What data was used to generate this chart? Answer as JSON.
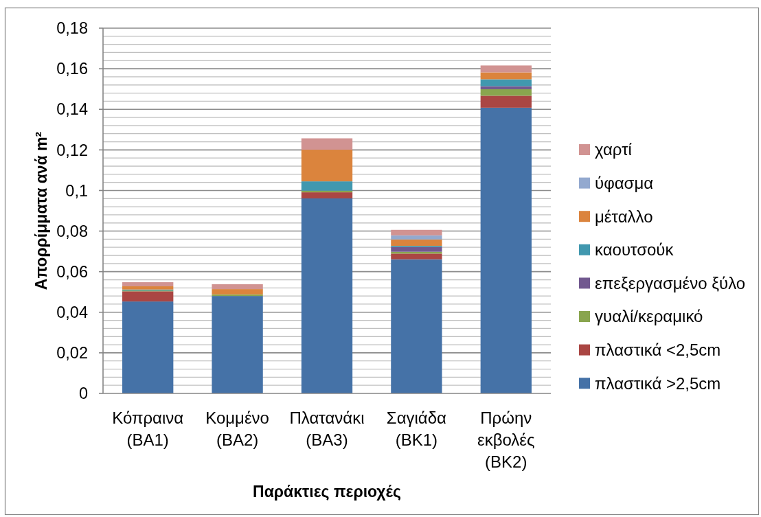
{
  "chart_data": {
    "type": "bar",
    "stacked": true,
    "xlabel": "Παράκτιες περιοχές",
    "ylabel": "Απορρίμματα ανά m²",
    "categories": [
      "Κόπραινα (ΒΑ1)",
      "Κομμένο (ΒΑ2)",
      "Πλατανάκι (ΒΑ3)",
      "Σαγιάδα (ΒΚ1)",
      "Πρώην εκβολές (ΒΚ2)"
    ],
    "series": [
      {
        "name": "πλαστικά >2,5cm",
        "color": "#4572a7",
        "values": [
          0.0453,
          0.048,
          0.0961,
          0.0661,
          0.1408
        ]
      },
      {
        "name": "πλαστικά <2,5cm",
        "color": "#aa4643",
        "values": [
          0.005,
          0,
          0.003,
          0.0028,
          0.0059
        ]
      },
      {
        "name": "γυαλί/κεραμικό",
        "color": "#89a54e",
        "values": [
          0.0004,
          0.0008,
          0.0008,
          0.0009,
          0.0032
        ]
      },
      {
        "name": "επεξεργασμένο ξύλο",
        "color": "#71588f",
        "values": [
          0,
          0,
          0,
          0.0023,
          0.0015
        ]
      },
      {
        "name": "καουτσούκ",
        "color": "#4198af",
        "values": [
          0.0005,
          0,
          0.0046,
          0.0006,
          0.0034
        ]
      },
      {
        "name": "μέταλλο",
        "color": "#db843d",
        "values": [
          0.0016,
          0.0026,
          0.0156,
          0.0032,
          0.0034
        ]
      },
      {
        "name": "ύφασμα",
        "color": "#93a9cf",
        "values": [
          0,
          0,
          0,
          0.002,
          0
        ]
      },
      {
        "name": "χαρτί",
        "color": "#d19392",
        "values": [
          0.002,
          0.0024,
          0.0056,
          0.0027,
          0.0034
        ]
      }
    ],
    "ylim": [
      0,
      0.18
    ],
    "yticks": [
      0,
      {
        "value": 0.004,
        "label": null
      },
      {
        "value": 0.008,
        "label": null
      },
      {
        "value": 0.012,
        "label": null
      },
      {
        "value": 0.016,
        "label": null
      },
      {
        "value": 0.02,
        "label": "0,02"
      },
      {
        "value": 0.024,
        "label": null
      },
      {
        "value": 0.028,
        "label": null
      },
      {
        "value": 0.032,
        "label": null
      },
      {
        "value": 0.036,
        "label": null
      },
      {
        "value": 0.04,
        "label": "0,04"
      },
      {
        "value": 0.044,
        "label": null
      },
      {
        "value": 0.048,
        "label": null
      },
      {
        "value": 0.052,
        "label": null
      },
      {
        "value": 0.056,
        "label": null
      },
      {
        "value": 0.06,
        "label": "0,06"
      },
      {
        "value": 0.064,
        "label": null
      },
      {
        "value": 0.068,
        "label": null
      },
      {
        "value": 0.072,
        "label": null
      },
      {
        "value": 0.076,
        "label": null
      },
      {
        "value": 0.08,
        "label": "0,08"
      },
      {
        "value": 0.084,
        "label": null
      },
      {
        "value": 0.088,
        "label": null
      },
      {
        "value": 0.092,
        "label": null
      },
      {
        "value": 0.096,
        "label": null
      },
      {
        "value": 0.1,
        "label": "0,1"
      },
      {
        "value": 0.104,
        "label": null
      },
      {
        "value": 0.108,
        "label": null
      },
      {
        "value": 0.112,
        "label": null
      },
      {
        "value": 0.116,
        "label": null
      },
      {
        "value": 0.12,
        "label": "0,12"
      },
      {
        "value": 0.124,
        "label": null
      },
      {
        "value": 0.128,
        "label": null
      },
      {
        "value": 0.132,
        "label": null
      },
      {
        "value": 0.136,
        "label": null
      },
      {
        "value": 0.14,
        "label": "0,14"
      },
      {
        "value": 0.144,
        "label": null
      },
      {
        "value": 0.148,
        "label": null
      },
      {
        "value": 0.152,
        "label": null
      },
      {
        "value": 0.156,
        "label": null
      },
      {
        "value": 0.16,
        "label": "0,16"
      },
      {
        "value": 0.164,
        "label": null
      },
      {
        "value": 0.168,
        "label": null
      },
      {
        "value": 0.172,
        "label": null
      },
      {
        "value": 0.176,
        "label": null
      },
      {
        "value": 0.18,
        "label": "0,18"
      }
    ],
    "grid": "y",
    "legend": "right"
  }
}
